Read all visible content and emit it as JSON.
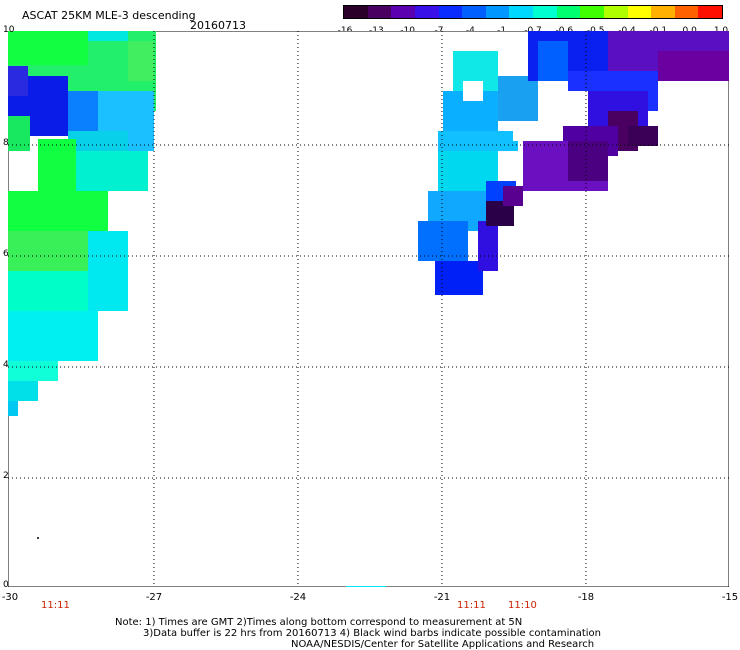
{
  "header": {
    "title": "ASCAT 25KM MLE-3 descending",
    "date": "20160713"
  },
  "colorbar": {
    "labels": [
      "-16",
      "-13",
      "-10",
      "-7",
      "-4",
      "-1",
      "-0.7",
      "-0.6",
      "-0.5",
      "-0.4",
      "-0.1",
      "0.0",
      "1.0"
    ],
    "colors": [
      "#2a0028",
      "#4a0060",
      "#5a00b0",
      "#3a10e8",
      "#0a2cff",
      "#0060ff",
      "#0098ff",
      "#00d8ff",
      "#00ffd0",
      "#00ff70",
      "#40ff00",
      "#b0ff00",
      "#ffff00",
      "#ffb000",
      "#ff6000",
      "#ff1000"
    ]
  },
  "axes": {
    "x_ticks": [
      "-30",
      "-27",
      "-24",
      "-21",
      "-18",
      "-15"
    ],
    "y_ticks": [
      "10",
      "8",
      "6",
      "4",
      "2",
      "0"
    ]
  },
  "times": [
    "11:11",
    "11:11",
    "11:10"
  ],
  "notes": [
    "Note: 1) Times are GMT 2)Times along bottom correspond to measurement at 5N",
    "3)Data buffer is 22 hrs from 20160713 4) Black wind barbs indicate possible contamination",
    "NOAA/NESDIS/Center for Satellite Applications and Research"
  ]
}
